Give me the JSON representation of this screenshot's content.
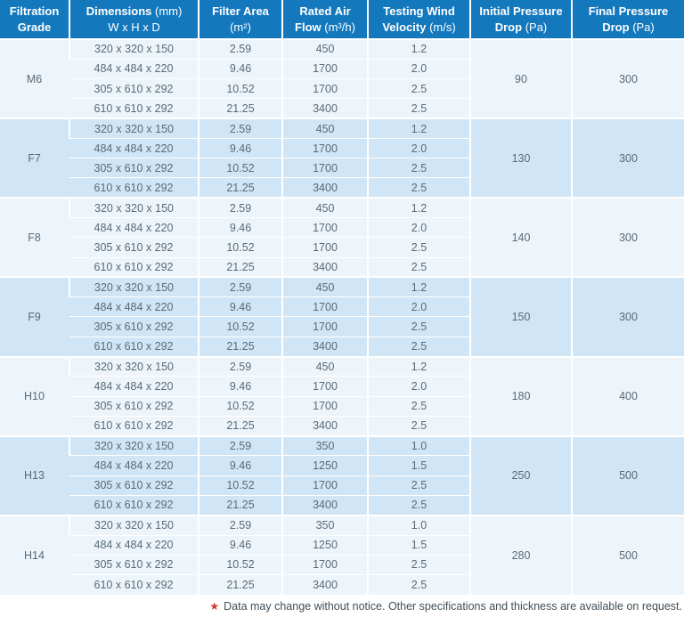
{
  "theme": {
    "header_bg": "#1478bd",
    "header_text": "#ffffff",
    "group_light": "#edf5fb",
    "group_blue": "#d0e6f6",
    "body_text": "#5a6a76",
    "grid_line": "#ffffff",
    "footnote_text": "#414e57",
    "star_color": "#d1342c"
  },
  "table": {
    "headers": [
      {
        "bold1": "Filtration",
        "reg1": "",
        "bold2": "Grade",
        "reg2": ""
      },
      {
        "bold1": "Dimensions",
        "reg1": " (mm)",
        "bold2": "",
        "reg2": "W x H x D"
      },
      {
        "bold1": "Filter Area",
        "reg1": "",
        "bold2": "",
        "reg2": "(m²)"
      },
      {
        "bold1": "Rated Air",
        "reg1": "",
        "bold2": "Flow",
        "reg2": " (m³/h)"
      },
      {
        "bold1": "Testing Wind",
        "reg1": "",
        "bold2": "Velocity",
        "reg2": " (m/s)"
      },
      {
        "bold1": "Initial Pressure",
        "reg1": "",
        "bold2": "Drop",
        "reg2": " (Pa)"
      },
      {
        "bold1": "Final Pressure",
        "reg1": "",
        "bold2": "Drop",
        "reg2": " (Pa)"
      }
    ],
    "groups": [
      {
        "grade": "M6",
        "initial": "90",
        "final": "300",
        "rows": [
          [
            "320 x 320 x 150",
            "2.59",
            "450",
            "1.2"
          ],
          [
            "484 x 484 x 220",
            "9.46",
            "1700",
            "2.0"
          ],
          [
            "305 x 610 x 292",
            "10.52",
            "1700",
            "2.5"
          ],
          [
            "610 x 610 x 292",
            "21.25",
            "3400",
            "2.5"
          ]
        ]
      },
      {
        "grade": "F7",
        "initial": "130",
        "final": "300",
        "rows": [
          [
            "320 x 320 x 150",
            "2.59",
            "450",
            "1.2"
          ],
          [
            "484 x 484 x 220",
            "9.46",
            "1700",
            "2.0"
          ],
          [
            "305 x 610 x 292",
            "10.52",
            "1700",
            "2.5"
          ],
          [
            "610 x 610 x 292",
            "21.25",
            "3400",
            "2.5"
          ]
        ]
      },
      {
        "grade": "F8",
        "initial": "140",
        "final": "300",
        "rows": [
          [
            "320 x 320 x 150",
            "2.59",
            "450",
            "1.2"
          ],
          [
            "484 x 484 x 220",
            "9.46",
            "1700",
            "2.0"
          ],
          [
            "305 x 610 x 292",
            "10.52",
            "1700",
            "2.5"
          ],
          [
            "610 x 610 x 292",
            "21.25",
            "3400",
            "2.5"
          ]
        ]
      },
      {
        "grade": "F9",
        "initial": "150",
        "final": "300",
        "rows": [
          [
            "320 x 320 x 150",
            "2.59",
            "450",
            "1.2"
          ],
          [
            "484 x 484 x 220",
            "9.46",
            "1700",
            "2.0"
          ],
          [
            "305 x 610 x 292",
            "10.52",
            "1700",
            "2.5"
          ],
          [
            "610 x 610 x 292",
            "21.25",
            "3400",
            "2.5"
          ]
        ]
      },
      {
        "grade": "H10",
        "initial": "180",
        "final": "400",
        "rows": [
          [
            "320 x 320 x 150",
            "2.59",
            "450",
            "1.2"
          ],
          [
            "484 x 484 x 220",
            "9.46",
            "1700",
            "2.0"
          ],
          [
            "305 x 610 x 292",
            "10.52",
            "1700",
            "2.5"
          ],
          [
            "610 x 610 x 292",
            "21.25",
            "3400",
            "2.5"
          ]
        ]
      },
      {
        "grade": "H13",
        "initial": "250",
        "final": "500",
        "rows": [
          [
            "320 x 320 x 150",
            "2.59",
            "350",
            "1.0"
          ],
          [
            "484 x 484 x 220",
            "9.46",
            "1250",
            "1.5"
          ],
          [
            "305 x 610 x 292",
            "10.52",
            "1700",
            "2.5"
          ],
          [
            "610 x 610 x 292",
            "21.25",
            "3400",
            "2.5"
          ]
        ]
      },
      {
        "grade": "H14",
        "initial": "280",
        "final": "500",
        "rows": [
          [
            "320 x 320 x 150",
            "2.59",
            "350",
            "1.0"
          ],
          [
            "484 x 484 x 220",
            "9.46",
            "1250",
            "1.5"
          ],
          [
            "305 x 610 x 292",
            "10.52",
            "1700",
            "2.5"
          ],
          [
            "610 x 610 x 292",
            "21.25",
            "3400",
            "2.5"
          ]
        ]
      }
    ]
  },
  "footnote": {
    "star": "★",
    "text": "Data may change without notice. Other specifications and thickness are available on request."
  }
}
